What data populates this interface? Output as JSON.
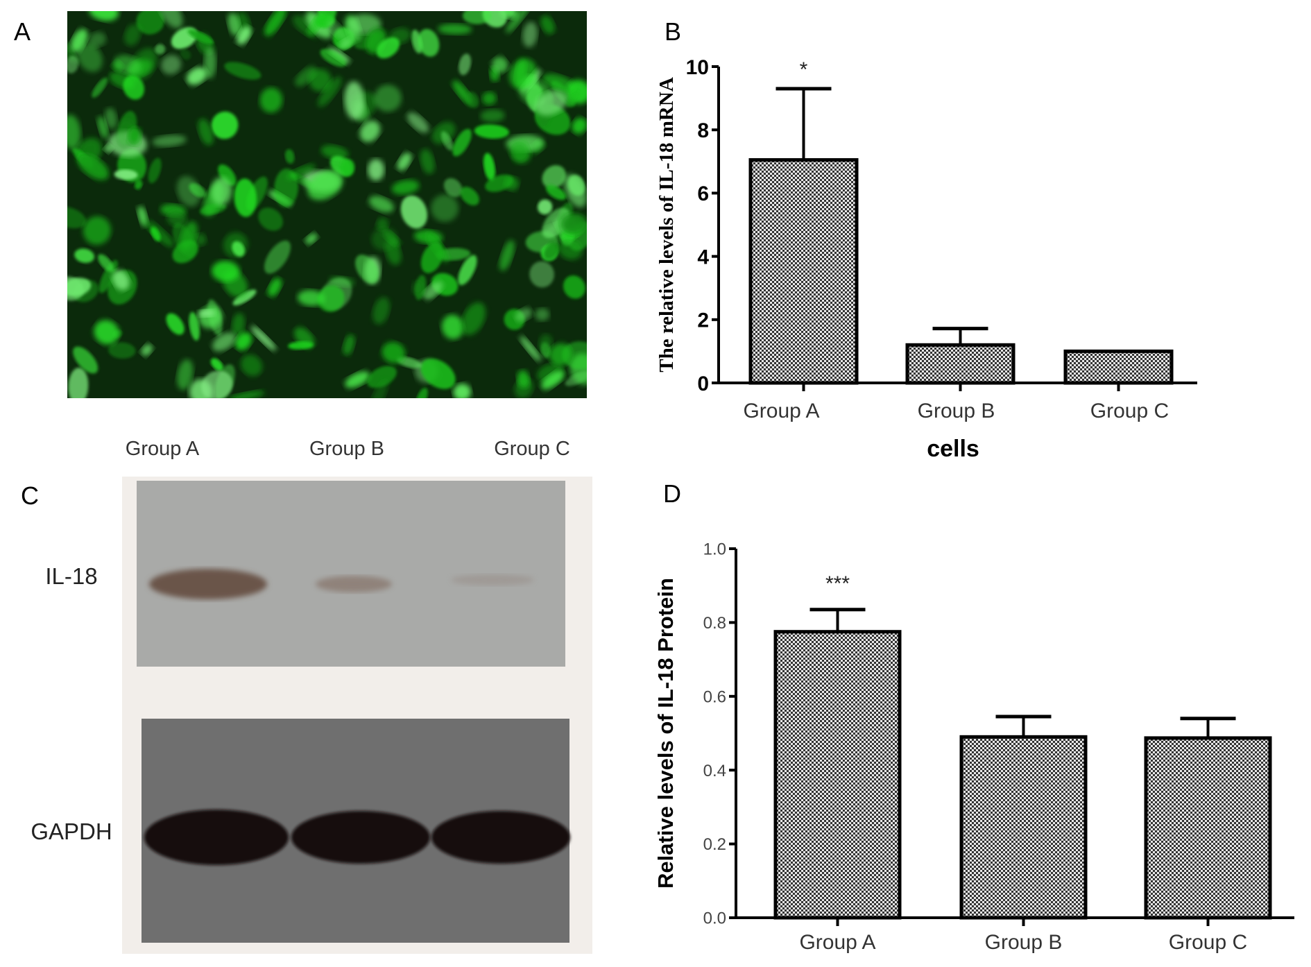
{
  "panels": {
    "a": {
      "label": "A"
    },
    "b": {
      "label": "B"
    },
    "c": {
      "label": "C",
      "lanes": [
        "Group A",
        "Group B",
        "Group C"
      ],
      "bands": [
        "IL-18",
        "GAPDH"
      ]
    },
    "d": {
      "label": "D"
    }
  },
  "colors": {
    "fluorescence": "#2fd12f",
    "bar_fill": "#9a9a9a",
    "axis": "#000000"
  },
  "chart_data": [
    {
      "type": "bar",
      "panel": "B",
      "categories": [
        "Group A",
        "Group B",
        "Group C"
      ],
      "values": [
        7.05,
        1.2,
        1.0
      ],
      "error_upper": [
        9.3,
        1.72,
        1.0
      ],
      "annotations": [
        "*",
        "",
        ""
      ],
      "title": "",
      "xlabel": "cells",
      "ylabel": "The relative levels of IL-18 mRNA",
      "ylim": [
        0,
        10
      ],
      "yticks": [
        "0",
        "2",
        "4",
        "6",
        "8",
        "10"
      ],
      "pattern": "checkered",
      "grid": false
    },
    {
      "type": "bar",
      "panel": "D",
      "categories": [
        "Group A",
        "Group B",
        "Group C"
      ],
      "values": [
        0.775,
        0.49,
        0.487
      ],
      "error_upper": [
        0.835,
        0.545,
        0.54
      ],
      "annotations": [
        "***",
        "",
        ""
      ],
      "title": "",
      "xlabel": "",
      "ylabel": "Relative levels of IL-18 Protein",
      "ylim": [
        0,
        1.0
      ],
      "yticks": [
        "0.0",
        "0.2",
        "0.4",
        "0.6",
        "0.8",
        "1.0"
      ],
      "pattern": "checkered",
      "grid": false
    }
  ]
}
